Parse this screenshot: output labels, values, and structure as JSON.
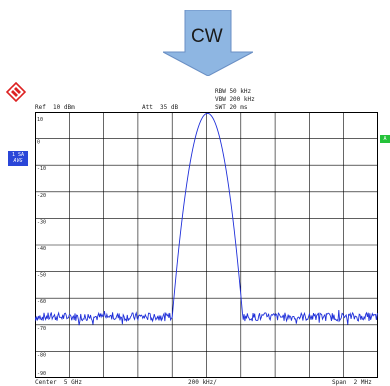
{
  "banner": {
    "label": "CW"
  },
  "colors": {
    "accent": "#2a46d8",
    "trace": "#1f2fd9",
    "arrow_fill": "#8eb6e2",
    "marker": "#25c23a"
  },
  "header": {
    "ref": "Ref  10 dBm",
    "att": "Att  35 dB",
    "rbw": "RBW 50 kHz",
    "vbw": "VBW 200 kHz",
    "swt": "SWT 20 ms"
  },
  "side": {
    "trace_mode": "1 SA",
    "detector": "AVG",
    "marker_label": "A"
  },
  "footer": {
    "center": "Center  5 GHz",
    "span_per_div": "200 kHz/",
    "span": "Span  2 MHz"
  },
  "y_ticks": [
    "10",
    "0",
    "-10",
    "-20",
    "-30",
    "-40",
    "-50",
    "-60",
    "-70",
    "-80",
    "-90"
  ],
  "chart_data": {
    "type": "line",
    "xlabel": "",
    "ylabel": "",
    "x_center_ghz": 5,
    "x_span_mhz": 2,
    "ylim_dbm": [
      -90,
      10
    ],
    "grid": true,
    "series": [
      {
        "name": "",
        "description_values": {
          "noise_floor_dbm": -67,
          "peak_dbm": 10,
          "peak_freq_ghz": 5.0
        }
      }
    ]
  }
}
